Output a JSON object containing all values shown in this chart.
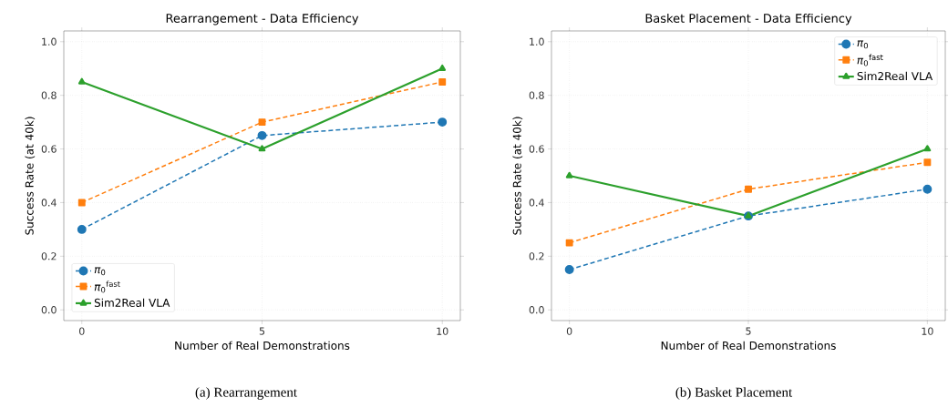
{
  "chart_data": [
    {
      "type": "line",
      "title": "Rearrangement - Data Efficiency",
      "xlabel": "Number of Real Demonstrations",
      "ylabel": "Success Rate (at 40k)",
      "x": [
        0,
        5,
        10
      ],
      "xlim": [
        -0.5,
        10.5
      ],
      "xticks": [
        0,
        5,
        10
      ],
      "ylim": [
        -0.04,
        1.04
      ],
      "yticks": [
        {
          "value": 0,
          "label": "0.0"
        },
        {
          "value": 0.2,
          "label": "0.2"
        },
        {
          "value": 0.4,
          "label": "0.4"
        },
        {
          "value": 0.6,
          "label": "0.6"
        },
        {
          "value": 0.8,
          "label": "0.8"
        },
        {
          "value": 1,
          "label": "1.0"
        }
      ],
      "grid": true,
      "legend": "bottom left",
      "annotations": [
        "(a) Rearrangement"
      ],
      "series": [
        {
          "name": "*π*$_{0}$",
          "color": "#1f77b4",
          "marker": "circle",
          "line_style": "dashed",
          "values": [
            0.3,
            0.65,
            0.7
          ]
        },
        {
          "name": "*π*$_{0}$$^{fast}$",
          "color": "#ff7f0e",
          "marker": "square",
          "line_style": "dashed",
          "values": [
            0.4,
            0.7,
            0.85
          ]
        },
        {
          "name": "Sim2Real VLA",
          "color": "#2ca02c",
          "marker": "triangle",
          "line_style": "solid",
          "values": [
            0.85,
            0.6,
            0.9
          ]
        }
      ]
    },
    {
      "type": "line",
      "title": "Basket Placement - Data Efficiency",
      "xlabel": "Number of Real Demonstrations",
      "ylabel": "Success Rate (at 40k)",
      "x": [
        0,
        5,
        10
      ],
      "xlim": [
        -0.5,
        10.5
      ],
      "xticks": [
        0,
        5,
        10
      ],
      "ylim": [
        -0.04,
        1.04
      ],
      "yticks": [
        {
          "value": 0,
          "label": "0.0"
        },
        {
          "value": 0.2,
          "label": "0.2"
        },
        {
          "value": 0.4,
          "label": "0.4"
        },
        {
          "value": 0.6,
          "label": "0.6"
        },
        {
          "value": 0.8,
          "label": "0.8"
        },
        {
          "value": 1,
          "label": "1.0"
        }
      ],
      "grid": true,
      "legend": "top right",
      "annotations": [
        "(b) Basket Placement"
      ],
      "series": [
        {
          "name": "*π*$_{0}$",
          "color": "#1f77b4",
          "marker": "circle",
          "line_style": "dashed",
          "values": [
            0.15,
            0.35,
            0.45
          ]
        },
        {
          "name": "*π*$_{0}$$^{fast}$",
          "color": "#ff7f0e",
          "marker": "square",
          "line_style": "dashed",
          "values": [
            0.25,
            0.45,
            0.55
          ]
        },
        {
          "name": "Sim2Real VLA",
          "color": "#2ca02c",
          "marker": "triangle",
          "line_style": "solid",
          "values": [
            0.5,
            0.35,
            0.6
          ]
        }
      ]
    }
  ]
}
